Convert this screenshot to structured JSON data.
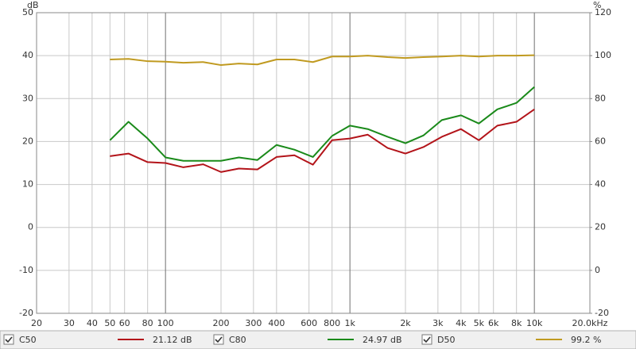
{
  "chart_data": {
    "type": "line",
    "ylabel": "dB",
    "y2label": "%",
    "xscale": "log",
    "grid": true,
    "xlim": [
      20,
      20000
    ],
    "xticks": [
      20,
      30,
      40,
      50,
      60,
      80,
      100,
      200,
      300,
      400,
      600,
      800,
      {
        "value": 1000,
        "label": "1k"
      },
      {
        "value": 2000,
        "label": "2k"
      },
      {
        "value": 3000,
        "label": "3k"
      },
      {
        "value": 4000,
        "label": "4k"
      },
      {
        "value": 5000,
        "label": "5k"
      },
      {
        "value": 6000,
        "label": "6k"
      },
      {
        "value": 8000,
        "label": "8k"
      },
      {
        "value": 10000,
        "label": "10k"
      },
      {
        "value": 20000,
        "label": "20.0kHz"
      }
    ],
    "ylim": [
      -20,
      50
    ],
    "yticks": [
      -20,
      -10,
      0,
      10,
      20,
      30,
      40,
      50
    ],
    "y2lim": [
      -20,
      120
    ],
    "y2ticks": [
      -20,
      0,
      20,
      40,
      60,
      80,
      100,
      120
    ],
    "x": [
      50,
      63,
      80,
      100,
      125,
      160,
      200,
      250,
      315,
      400,
      500,
      630,
      800,
      1000,
      1250,
      1600,
      2000,
      2500,
      3150,
      4000,
      5000,
      6300,
      8000,
      10000
    ],
    "series": [
      {
        "name": "C50",
        "color": "#b3141a",
        "readout": "21.12 dB",
        "values": [
          16.6,
          17.2,
          15.2,
          15.0,
          14.0,
          14.7,
          12.9,
          13.7,
          13.5,
          16.4,
          16.8,
          14.6,
          20.3,
          20.7,
          21.6,
          18.5,
          17.2,
          18.7,
          21.1,
          22.9,
          20.3,
          23.7,
          24.6,
          27.5
        ]
      },
      {
        "name": "C80",
        "color": "#1a8a1a",
        "readout": "24.97 dB",
        "values": [
          20.3,
          24.6,
          20.7,
          16.3,
          15.5,
          15.5,
          15.5,
          16.3,
          15.7,
          19.2,
          18.1,
          16.4,
          21.3,
          23.7,
          22.9,
          21.1,
          19.6,
          21.4,
          25.0,
          26.1,
          24.2,
          27.5,
          29.0,
          32.7
        ]
      },
      {
        "name": "D50",
        "color": "#c09a20",
        "readout": "99.2 %",
        "axis": "y2",
        "values": [
          98.2,
          98.5,
          97.4,
          97.2,
          96.7,
          97.0,
          95.6,
          96.3,
          95.9,
          98.2,
          98.2,
          97.0,
          99.6,
          99.6,
          100,
          99.3,
          98.9,
          99.3,
          99.6,
          100,
          99.6,
          100,
          100,
          100.2
        ]
      }
    ]
  }
}
